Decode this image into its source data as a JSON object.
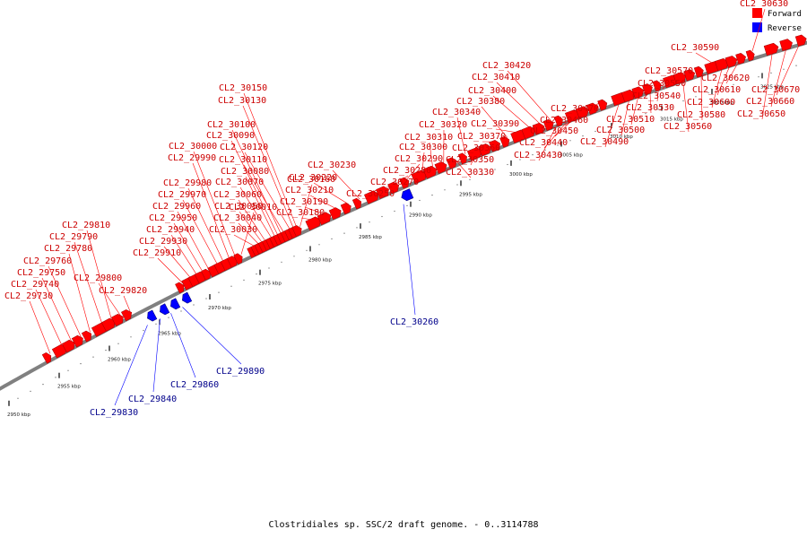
{
  "caption": "Clostridiales sp. SSC/2 draft genome. - 0..3114788",
  "legend": [
    {
      "label": "Forward",
      "color": "#ff0000"
    },
    {
      "label": "Reverse",
      "color": "#0000ff"
    }
  ],
  "colors": {
    "forward": "#ff0000",
    "reverse": "#0000ff",
    "forward_label": "#cc0000",
    "reverse_label": "#00008b",
    "backbone": "#808080"
  },
  "ticks": [
    {
      "label": "2950 kbp",
      "kbp": 2950
    },
    {
      "label": "2955 kbp",
      "kbp": 2955
    },
    {
      "label": "2960 kbp",
      "kbp": 2960
    },
    {
      "label": "2965 kbp",
      "kbp": 2965
    },
    {
      "label": "2970 kbp",
      "kbp": 2970
    },
    {
      "label": "2975 kbp",
      "kbp": 2975
    },
    {
      "label": "2980 kbp",
      "kbp": 2980
    },
    {
      "label": "2985 kbp",
      "kbp": 2985
    },
    {
      "label": "2990 kbp",
      "kbp": 2990
    },
    {
      "label": "2995 kbp",
      "kbp": 2995
    },
    {
      "label": "3000 kbp",
      "kbp": 3000
    },
    {
      "label": "3005 kbp",
      "kbp": 3005
    },
    {
      "label": "3010 kbp",
      "kbp": 3010
    },
    {
      "label": "3015 kbp",
      "kbp": 3015
    },
    {
      "label": "3020 kbp",
      "kbp": 3020
    },
    {
      "label": "3025 kbp",
      "kbp": 3025
    }
  ],
  "forward_genes": [
    "CL2_29730",
    "CL2_29740",
    "CL2_29750",
    "CL2_29760",
    "CL2_29780",
    "CL2_29790",
    "CL2_29810",
    "CL2_29800",
    "CL2_29820",
    "CL2_29910",
    "CL2_29930",
    "CL2_29940",
    "CL2_29950",
    "CL2_29960",
    "CL2_29970",
    "CL2_29980",
    "CL2_29990",
    "CL2_30000",
    "CL2_30010",
    "CL2_30030",
    "CL2_30040",
    "CL2_30050",
    "CL2_30060",
    "CL2_30070",
    "CL2_30080",
    "CL2_30090",
    "CL2_30100",
    "CL2_30110",
    "CL2_30120",
    "CL2_30130",
    "CL2_30150",
    "CL2_30160",
    "CL2_30180",
    "CL2_30190",
    "CL2_30210",
    "CL2_30220",
    "CL2_30230",
    "CL2_30250",
    "CL2_30270",
    "CL2_30280",
    "CL2_30290",
    "CL2_30300",
    "CL2_30310",
    "CL2_30320",
    "CL2_30330",
    "CL2_30340",
    "CL2_30350",
    "CL2_30360",
    "CL2_30370",
    "CL2_30380",
    "CL2_30390",
    "CL2_30400",
    "CL2_30410",
    "CL2_30420",
    "CL2_30430",
    "CL2_30440",
    "CL2_30450",
    "CL2_30460",
    "CL2_30470",
    "CL2_30490",
    "CL2_30500",
    "CL2_30510",
    "CL2_30530",
    "CL2_30540",
    "CL2_30550",
    "CL2_30560",
    "CL2_30570",
    "CL2_30580",
    "CL2_30590",
    "CL2_30600",
    "CL2_30610",
    "CL2_30620",
    "CL2_30630",
    "CL2_30650",
    "CL2_30660",
    "CL2_30670"
  ],
  "reverse_genes": [
    "CL2_29830",
    "CL2_29840",
    "CL2_29860",
    "CL2_29890",
    "CL2_30260"
  ]
}
